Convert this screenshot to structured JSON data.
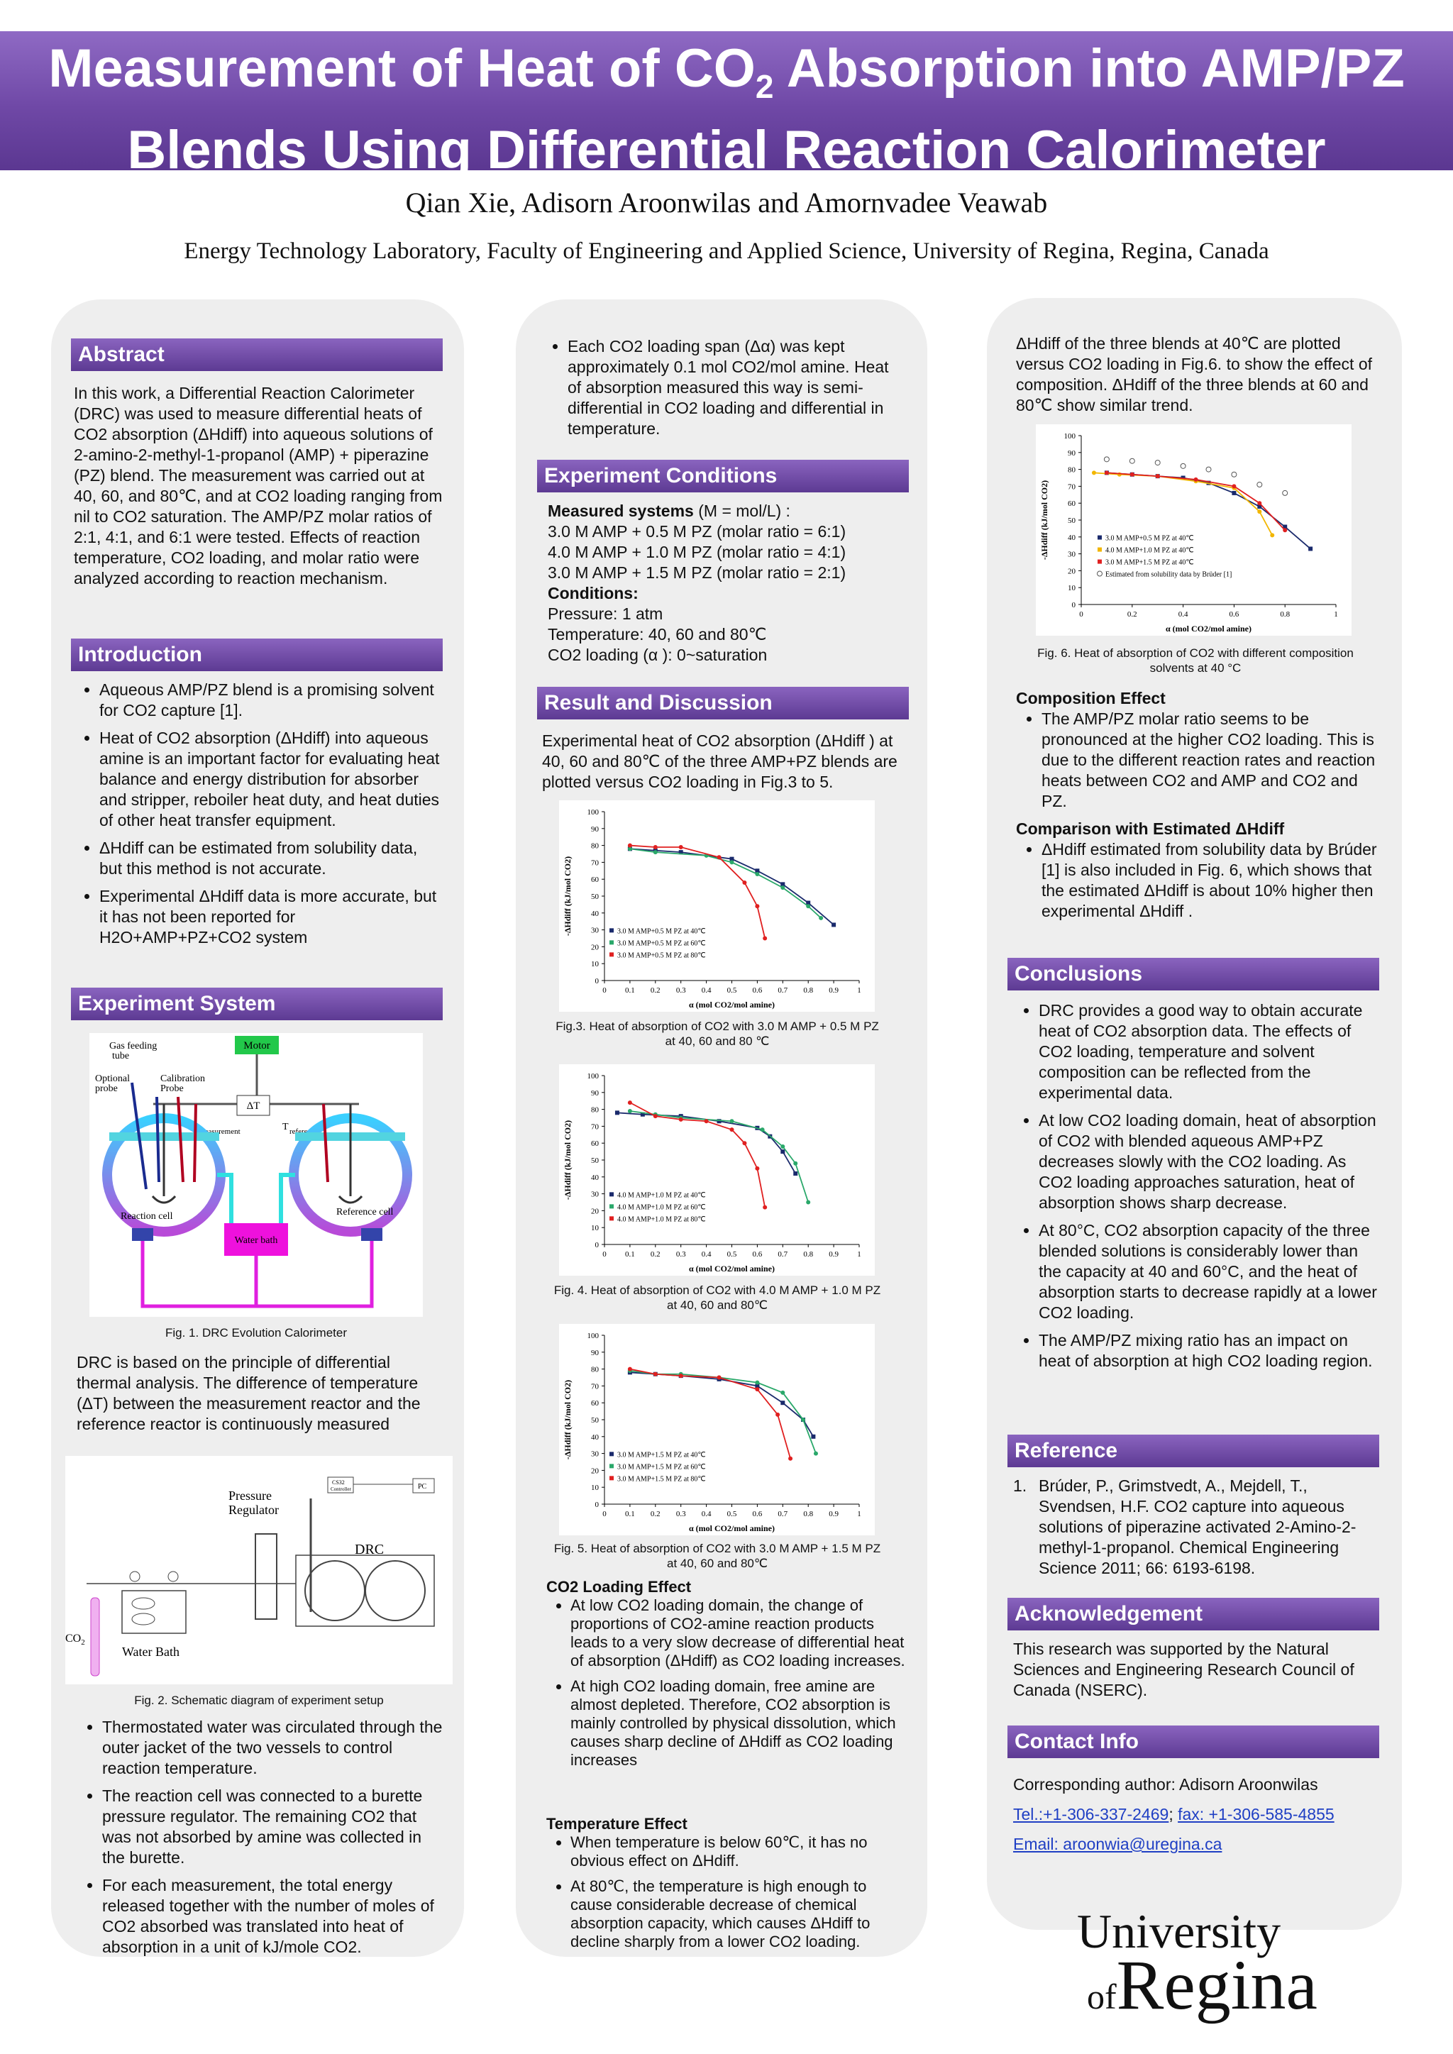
{
  "header": {
    "title_line1_pre": "Measurement of Heat of CO",
    "title_line1_sub": "2",
    "title_line1_post": " Absorption into AMP/PZ",
    "title_line2": "Blends Using Differential Reaction Calorimeter",
    "authors": "Qian Xie, Adisorn Aroonwilas and Amornvadee Veawab",
    "affiliation": "Energy Technology Laboratory, Faculty of Engineering and Applied Science, University of Regina, Regina, Canada"
  },
  "sections": {
    "abstract": "Abstract",
    "introduction": "Introduction",
    "experiment_system": "Experiment System",
    "experiment_conditions": "Experiment Conditions",
    "result_discussion": "Result and Discussion",
    "conclusions": "Conclusions",
    "reference": "Reference",
    "acknowledgement": "Acknowledgement",
    "contact": "Contact Info"
  },
  "figure1": {
    "caption": "Fig. 1. DRC Evolution Calorimeter",
    "motor": "Motor",
    "gas_feeding": "Gas feeding",
    "tube": "tube",
    "optional": "Optional",
    "probe": "probe",
    "calibration": "Calibration",
    "probe2": "Probe",
    "delta_t": "ΔT",
    "t": "T",
    "measurement": "measurement",
    "reference": "reference",
    "reaction_cell": "Reaction cell",
    "reference_cell": "Reference cell",
    "water_bath": "Water bath"
  },
  "figure2": {
    "caption": "Fig. 2. Schematic diagram of experiment setup",
    "pressure": "Pressure",
    "regulator": "Regulator",
    "drc": "DRC",
    "water_bath": "Water Bath",
    "co2": "CO",
    "co2_sub": "2",
    "pc": "PC",
    "cs32": "CS32",
    "controller": "Controller"
  },
  "chart_common": {
    "xlabel": "α (mol CO2/mol amine)",
    "ylabel": "-ΔHdiff (kJ/mol CO2)",
    "x_ticks": [
      "0",
      "0.1",
      "0.2",
      "0.3",
      "0.4",
      "0.5",
      "0.6",
      "0.7",
      "0.8",
      "0.9",
      "1"
    ],
    "y_ticks": [
      "0",
      "10",
      "20",
      "30",
      "40",
      "50",
      "60",
      "70",
      "80",
      "90",
      "100"
    ],
    "fig6_x_ticks": [
      "0",
      "0.2",
      "0.4",
      "0.6",
      "0.8",
      "1"
    ]
  },
  "chart_data": [
    {
      "type": "scatter",
      "xlabel": "α (mol CO2/mol amine)",
      "ylabel": "-ΔHdiff (kJ/mol CO2)",
      "xlim": [
        0,
        1
      ],
      "ylim": [
        0,
        100
      ],
      "series": [
        {
          "name": "3.0 M AMP+0.5 M PZ at 40℃",
          "color": "#1a2a6c",
          "x": [
            0.1,
            0.2,
            0.3,
            0.5,
            0.6,
            0.7,
            0.8,
            0.9
          ],
          "y": [
            78,
            77,
            76,
            72,
            65,
            57,
            46,
            33
          ]
        },
        {
          "name": "3.0 M AMP+0.5 M PZ at 60℃",
          "color": "#2aa86a",
          "x": [
            0.1,
            0.2,
            0.4,
            0.5,
            0.6,
            0.7,
            0.8,
            0.85
          ],
          "y": [
            78,
            76,
            74,
            70,
            63,
            55,
            44,
            37
          ]
        },
        {
          "name": "3.0 M AMP+0.5 M PZ at 80℃",
          "color": "#e02020",
          "x": [
            0.1,
            0.2,
            0.3,
            0.45,
            0.55,
            0.6,
            0.63
          ],
          "y": [
            80,
            79,
            79,
            73,
            58,
            44,
            25
          ]
        }
      ]
    },
    {
      "type": "scatter",
      "xlabel": "α (mol CO2/mol amine)",
      "ylabel": "-ΔHdiff (kJ/mol CO2)",
      "xlim": [
        0,
        1
      ],
      "ylim": [
        0,
        100
      ],
      "series": [
        {
          "name": "4.0 M AMP+1.0 M PZ at 40℃",
          "color": "#1a2a6c",
          "x": [
            0.05,
            0.15,
            0.3,
            0.45,
            0.6,
            0.65,
            0.7,
            0.75
          ],
          "y": [
            78,
            77,
            76,
            73,
            69,
            64,
            55,
            42
          ]
        },
        {
          "name": "4.0 M AMP+1.0 M PZ at 60℃",
          "color": "#2aa86a",
          "x": [
            0.1,
            0.2,
            0.3,
            0.5,
            0.62,
            0.7,
            0.75,
            0.8
          ],
          "y": [
            79,
            77,
            75,
            73,
            68,
            58,
            48,
            25
          ]
        },
        {
          "name": "4.0 M AMP+1.0 M PZ at 80℃",
          "color": "#e02020",
          "x": [
            0.1,
            0.2,
            0.3,
            0.4,
            0.5,
            0.55,
            0.6,
            0.63
          ],
          "y": [
            84,
            76,
            74,
            73,
            68,
            60,
            45,
            22
          ]
        }
      ]
    },
    {
      "type": "scatter",
      "xlabel": "α (mol CO2/mol amine)",
      "ylabel": "-ΔHdiff (kJ/mol CO2)",
      "xlim": [
        0,
        1
      ],
      "ylim": [
        0,
        100
      ],
      "series": [
        {
          "name": "3.0 M AMP+1.5 M PZ at 40℃",
          "color": "#1a2a6c",
          "x": [
            0.1,
            0.2,
            0.3,
            0.45,
            0.6,
            0.7,
            0.78,
            0.82
          ],
          "y": [
            78,
            77,
            76,
            74,
            70,
            60,
            50,
            40
          ]
        },
        {
          "name": "3.0 M AMP+1.5 M PZ at 60℃",
          "color": "#2aa86a",
          "x": [
            0.1,
            0.2,
            0.3,
            0.45,
            0.6,
            0.7,
            0.78,
            0.83
          ],
          "y": [
            79,
            77,
            77,
            75,
            72,
            66,
            50,
            30
          ]
        },
        {
          "name": "3.0 M AMP+1.5 M PZ at 80℃",
          "color": "#e02020",
          "x": [
            0.1,
            0.2,
            0.3,
            0.45,
            0.6,
            0.68,
            0.73
          ],
          "y": [
            80,
            77,
            76,
            75,
            68,
            53,
            27
          ]
        }
      ]
    },
    {
      "type": "scatter",
      "xlabel": "α (mol CO2/mol amine)",
      "ylabel": "-ΔHdiff (kJ/mol CO2)",
      "xlim": [
        0,
        1
      ],
      "ylim": [
        0,
        100
      ],
      "series": [
        {
          "name": "3.0 M AMP+0.5 M PZ at 40℃",
          "color": "#1a2a6c",
          "x": [
            0.1,
            0.2,
            0.3,
            0.4,
            0.5,
            0.6,
            0.7,
            0.8,
            0.9
          ],
          "y": [
            78,
            77,
            76,
            75,
            72,
            66,
            58,
            46,
            33
          ]
        },
        {
          "name": "4.0 M AMP+1.0 M PZ at 40℃",
          "color": "#f2b600",
          "x": [
            0.05,
            0.15,
            0.3,
            0.45,
            0.6,
            0.7,
            0.75
          ],
          "y": [
            78,
            77,
            76,
            73,
            69,
            55,
            41
          ]
        },
        {
          "name": "3.0 M AMP+1.5 M PZ at 40℃",
          "color": "#e02020",
          "x": [
            0.1,
            0.2,
            0.3,
            0.45,
            0.6,
            0.7,
            0.8
          ],
          "y": [
            78,
            77,
            76,
            74,
            70,
            60,
            44
          ]
        },
        {
          "name": "Estimated from solubility data by Brüder [1]",
          "color": "#555555",
          "x": [
            0.1,
            0.2,
            0.3,
            0.4,
            0.5,
            0.6,
            0.7,
            0.8
          ],
          "y": [
            86,
            85,
            84,
            82,
            80,
            77,
            71,
            66
          ]
        }
      ]
    }
  ],
  "abstract": {
    "text": "In this work, a Differential Reaction Calorimeter (DRC) was used to measure differential heats of CO2 absorption (ΔHdiff) into aqueous solutions of 2-amino-2-methyl-1-propanol (AMP) + piperazine (PZ) blend. The measurement was carried out at 40, 60, and 80℃, and at CO2 loading ranging from nil to CO2 saturation. The AMP/PZ molar ratios of 2:1, 4:1, and 6:1 were tested. Effects of reaction temperature, CO2 loading, and molar ratio were analyzed according to reaction mechanism."
  },
  "introduction": [
    "Aqueous AMP/PZ blend is a promising solvent for CO2 capture [1].",
    "Heat of CO2 absorption (ΔHdiff) into aqueous amine is an important factor for evaluating heat balance and energy distribution for absorber and stripper, reboiler heat duty, and heat duties of other heat transfer equipment.",
    "ΔHdiff can be estimated from solubility data, but this method is not accurate.",
    "Experimental ΔHdiff data is more accurate, but it has not been reported for H2O+AMP+PZ+CO2 system"
  ],
  "experiment_system": {
    "principle": "DRC is based on the principle of differential thermal analysis. The difference of temperature (ΔT) between the measurement reactor and the reference reactor is continuously measured",
    "bullets": [
      "Thermostated water was circulated through the outer jacket of the two vessels to control reaction temperature.",
      "The reaction cell was connected to a burette pressure regulator. The remaining CO2 that was not absorbed by amine was collected in the burette.",
      "For each measurement, the total energy released together with the number of moles of CO2 absorbed was translated into heat of absorption in a unit of kJ/mole CO2."
    ]
  },
  "column2": {
    "loading_bullet": "Each CO2 loading span (Δα) was kept approximately 0.1 mol CO2/mol amine. Heat of absorption measured this way is semi-differential in CO2 loading and differential in temperature.",
    "measured_label": "Measured systems",
    "measured_unit": " (M = mol/L) :",
    "systems": [
      "3.0 M AMP + 0.5 M PZ  (molar ratio = 6:1)",
      "4.0 M AMP + 1.0 M PZ  (molar ratio = 4:1)",
      "3.0 M AMP + 1.5 M PZ  (molar ratio = 2:1)"
    ],
    "conditions_label": "Conditions:",
    "conditions": [
      "Pressure: 1 atm",
      "Temperature: 40, 60 and 80℃",
      "CO2 loading (α ): 0~saturation"
    ],
    "results_intro": "Experimental heat of CO2 absorption (ΔHdiff ) at 40, 60 and 80℃ of the three AMP+PZ blends are plotted versus CO2 loading in Fig.3 to 5.",
    "fig3_caption": "Fig.3. Heat of absorption of CO2 with 3.0 M AMP + 0.5 M PZ at 40, 60 and 80 ℃",
    "fig4_caption": "Fig. 4. Heat of absorption of CO2 with 4.0 M AMP + 1.0 M PZ at 40, 60 and 80℃",
    "fig5_caption": "Fig. 5. Heat of absorption of CO2 with 3.0 M AMP + 1.5 M PZ at 40, 60 and 80℃",
    "loading_effect_title": "CO2 Loading Effect",
    "loading_effect": [
      "At low CO2 loading domain, the change of proportions of CO2-amine reaction products leads to a very slow decrease of differential heat of absorption (ΔHdiff) as CO2 loading increases.",
      "At high CO2 loading domain, free amine are almost depleted. Therefore, CO2 absorption is mainly controlled by physical dissolution, which causes sharp decline of ΔHdiff as CO2 loading increases"
    ],
    "temperature_effect_title": "Temperature Effect",
    "temperature_effect": [
      "When temperature is below 60℃, it has no obvious effect on ΔHdiff.",
      "At 80℃, the temperature is high enough to cause considerable decrease of chemical absorption capacity, which causes ΔHdiff to decline sharply from a lower CO2 loading."
    ]
  },
  "column3": {
    "fig6_intro": "ΔHdiff of the three blends at 40℃ are plotted versus CO2 loading in Fig.6. to show the effect of composition. ΔHdiff of the three blends at 60 and 80℃ show similar trend.",
    "fig6_caption": "Fig. 6. Heat of absorption of CO2 with different composition solvents at 40 °C",
    "composition_title": "Composition Effect",
    "composition": "The AMP/PZ molar ratio seems to be pronounced at the higher CO2 loading. This is due to the different reaction rates and reaction heats  between CO2 and AMP and CO2 and PZ.",
    "comparison_title": "Comparison with Estimated ΔHdiff",
    "comparison": "ΔHdiff  estimated from solubility data by Brúder [1] is also included in Fig. 6, which shows that the estimated ΔHdiff is about 10% higher then experimental ΔHdiff .",
    "conclusions": [
      "DRC provides a good way to obtain accurate heat of  CO2 absorption data. The effects of CO2 loading, temperature and solvent composition can be reflected from the experimental data.",
      "At low CO2 loading domain, heat of absorption of CO2 with blended aqueous AMP+PZ decreases slowly with the CO2 loading. As CO2 loading approaches saturation, heat of absorption shows sharp decrease.",
      "At 80°C, CO2 absorption capacity of the three blended solutions is considerably lower than the capacity at 40 and 60°C, and the heat of absorption starts to decrease rapidly at a lower CO2 loading.",
      "The AMP/PZ mixing ratio has an impact on heat of absorption at high CO2 loading region."
    ],
    "reference_num": "1.",
    "reference": "Brúder, P., Grimstvedt, A., Mejdell, T., Svendsen, H.F. CO2 capture into aqueous solutions of piperazine activated 2-Amino-2-methyl-1-propanol. Chemical Engineering Science 2011; 66: 6193-6198.",
    "acknowledgement": "This research was supported by the Natural Sciences and Engineering Research Council of Canada (NSERC).",
    "contact_author": "Corresponding author:  Adisorn Aroonwilas",
    "tel": "Tel.:+1-306-337-2469",
    "sep": "; ",
    "fax": "fax: +1-306-585-4855",
    "email": "Email: aroonwia@uregina.ca",
    "logo_line1": "University",
    "logo_of": "of",
    "logo_line2": "Regina"
  }
}
